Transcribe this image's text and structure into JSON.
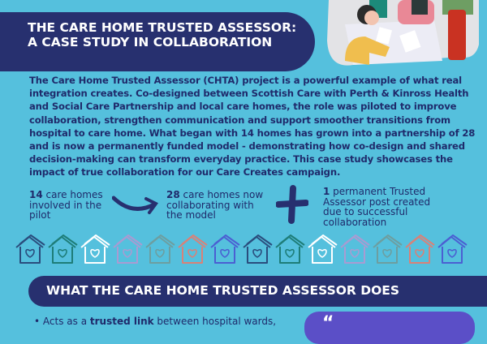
{
  "header": {
    "title_line1": "THE CARE HOME TRUSTED ASSESSOR:",
    "title_line2": "A CASE STUDY IN COLLABORATION"
  },
  "intro": "The Care Home Trusted Assessor (CHTA) project is a powerful example of what real integration creates. Co-designed between Scottish Care with Perth & Kinross Health and Social Care Partnership and local care homes, the role was piloted to improve collaboration, strengthen communication and support smoother transitions from hospital to care home. What began with 14 homes has grown into a partnership of 28 and is now a permanently funded model - demonstrating how co-design and shared decision-making can transform everyday practice. This case study showcases the impact of true collaboration for our Care Creates campaign.",
  "stats": [
    {
      "number": "14",
      "text": " care homes involved in the pilot"
    },
    {
      "number": "28",
      "text": " care homes now collaborating with the model"
    },
    {
      "number": "1",
      "text": " permanent Trusted Assessor post created due to successful collaboration"
    }
  ],
  "house_colors": [
    "#2a4d7d",
    "#1e7d78",
    "#ffffff",
    "#a99bd2",
    "#6d9ea0",
    "#d98178",
    "#4b5fd2",
    "#2a4d7d",
    "#1e7d78",
    "#ffffff",
    "#a99bd2",
    "#6d9ea0",
    "#d98178",
    "#4b5fd2"
  ],
  "section2": {
    "title": "WHAT THE CARE HOME TRUSTED ASSESSOR DOES",
    "bullet_pre": "Acts as a ",
    "bullet_bold": "trusted link",
    "bullet_post": " between hospital wards,",
    "quote_mark": "“"
  },
  "colors": {
    "background": "#55c0dd",
    "navy": "#27306f",
    "purple": "#5b4fc7"
  }
}
